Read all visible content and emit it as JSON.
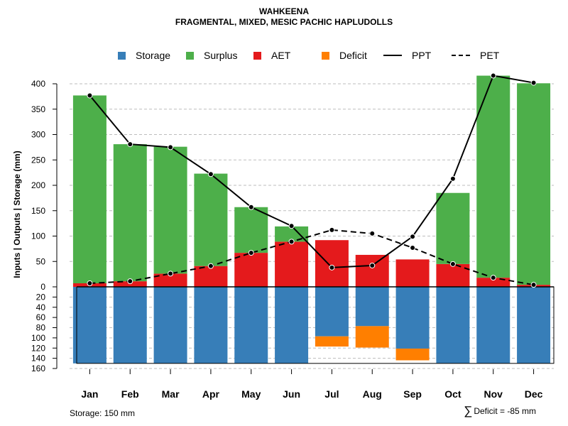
{
  "chart_data": {
    "type": "bar",
    "title": "WAHKEENA",
    "subtitle": "FRAGMENTAL, MIXED, MESIC PACHIC HAPLUDOLLS",
    "ylabel": "Inputs | Outputs | Storage    (mm)",
    "categories": [
      "Jan",
      "Feb",
      "Mar",
      "Apr",
      "May",
      "Jun",
      "Jul",
      "Aug",
      "Sep",
      "Oct",
      "Nov",
      "Dec"
    ],
    "ylim_upper": [
      0,
      400
    ],
    "ylim_lower": [
      0,
      160
    ],
    "yticks_upper": [
      "400",
      "350",
      "300",
      "250",
      "200",
      "150",
      "100",
      "50",
      "0"
    ],
    "yticks_lower": [
      "20",
      "40",
      "60",
      "80",
      "100",
      "120",
      "140",
      "160"
    ],
    "series": [
      {
        "name": "Storage",
        "color": "#377EB8",
        "values": [
          150,
          150,
          150,
          150,
          150,
          150,
          97,
          77,
          121,
          150,
          150,
          150
        ]
      },
      {
        "name": "Surplus",
        "color": "#4DAF4A",
        "values": [
          370,
          270,
          250,
          182,
          90,
          30,
          0,
          0,
          0,
          140,
          398,
          397
        ]
      },
      {
        "name": "AET",
        "color": "#E41A1C",
        "values": [
          7,
          11,
          26,
          41,
          67,
          89,
          92,
          63,
          54,
          45,
          18,
          4
        ]
      },
      {
        "name": "Deficit",
        "color": "#FF7F00",
        "values": [
          0,
          0,
          0,
          0,
          0,
          0,
          20,
          42,
          23,
          0,
          0,
          0
        ]
      },
      {
        "name": "PPT",
        "color": "#000000",
        "style": "solid",
        "values": [
          377,
          281,
          275,
          222,
          157,
          120,
          38,
          42,
          99,
          213,
          416,
          402
        ]
      },
      {
        "name": "PET",
        "color": "#000000",
        "style": "dashed",
        "values": [
          7,
          11,
          26,
          41,
          67,
          89,
          112,
          105,
          77,
          45,
          18,
          4
        ]
      }
    ],
    "legend_position": "top",
    "grid": true
  },
  "footer": {
    "storage": "Storage: 150 mm",
    "deficit_symbol": "∑",
    "deficit": "Deficit = -85 mm"
  }
}
